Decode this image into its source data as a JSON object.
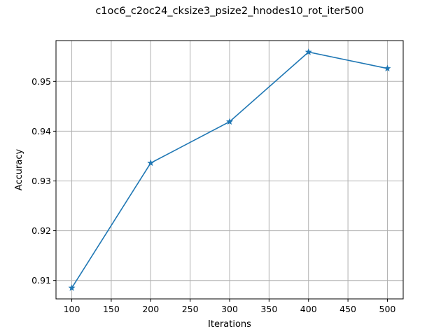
{
  "chart_data": {
    "type": "line",
    "title": "c1oc6_c2oc24_cksize3_psize2_hnodes10_rot_iter500",
    "xlabel": "Iterations",
    "ylabel": "Accuracy",
    "xlim": [
      80,
      520
    ],
    "ylim": [
      0.9063,
      0.9582
    ],
    "xticks": [
      100,
      150,
      200,
      250,
      300,
      350,
      400,
      450,
      500
    ],
    "yticks": [
      0.91,
      0.92,
      0.93,
      0.94,
      0.95
    ],
    "ytick_labels": [
      "0.91",
      "0.92",
      "0.93",
      "0.94",
      "0.95"
    ],
    "grid": true,
    "marker": "star",
    "color": "#1f77b4",
    "series": [
      {
        "x": [
          100,
          200,
          300,
          400,
          500
        ],
        "values": [
          0.9085,
          0.9336,
          0.9419,
          0.9559,
          0.9526
        ]
      }
    ]
  }
}
